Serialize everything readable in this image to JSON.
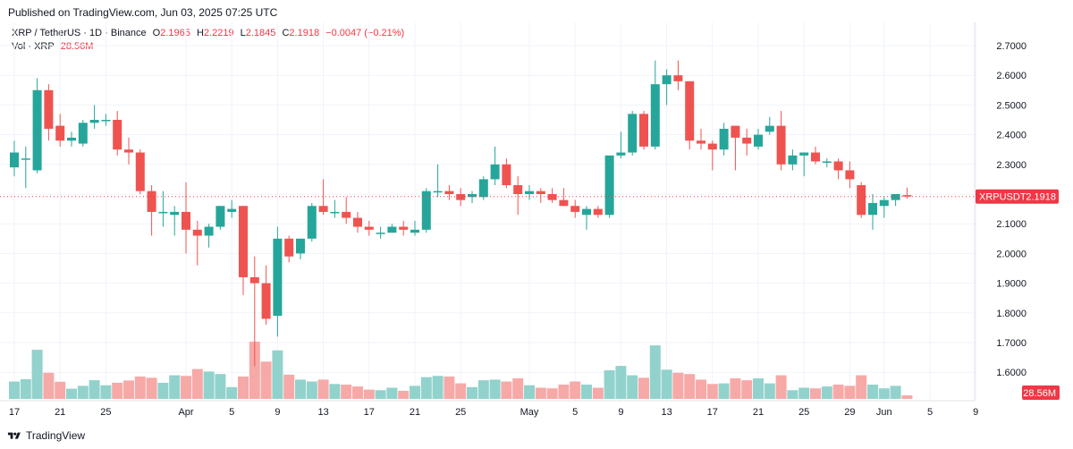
{
  "header": {
    "published": "Published on TradingView.com, Jun 03, 2025 07:25 UTC"
  },
  "legend": {
    "symbol": "XRP / TetherUS · 1D · Binance",
    "o_label": "O",
    "o_value": "2.1965",
    "h_label": "H",
    "h_value": "2.2219",
    "l_label": "L",
    "l_value": "2.1845",
    "c_label": "C",
    "c_value": "2.1918",
    "change": "−0.0047 (−0.21%)",
    "vol_label": "Vol · XRP",
    "vol_value": "28.56M"
  },
  "footer": {
    "brand": "TradingView",
    "logo_icon": "tradingview-logo-icon"
  },
  "colors": {
    "up": "#26a69a",
    "down": "#ef5350",
    "vol_up": "#92d2cc",
    "vol_down": "#f7a9a7",
    "grid": "#f0f3fa",
    "axis_text": "#131722",
    "price_tag": "#f23645"
  },
  "chart_data": {
    "type": "candlestick",
    "symbol": "XRP / TetherUS",
    "interval": "1D",
    "exchange": "Binance",
    "grid": true,
    "y_axis_position": "right",
    "ylim": [
      1.5,
      2.75
    ],
    "y_ticks": [
      "2.7000",
      "2.6000",
      "2.5000",
      "2.4000",
      "2.3000",
      "2.2000",
      "2.1000",
      "2.0000",
      "1.9000",
      "1.8000",
      "1.7000",
      "1.6000"
    ],
    "x_ticks": [
      {
        "label": "17",
        "day": 0
      },
      {
        "label": "21",
        "day": 4
      },
      {
        "label": "25",
        "day": 8
      },
      {
        "label": "Apr",
        "day": 15
      },
      {
        "label": "5",
        "day": 19
      },
      {
        "label": "9",
        "day": 23
      },
      {
        "label": "13",
        "day": 27
      },
      {
        "label": "17",
        "day": 31
      },
      {
        "label": "21",
        "day": 35
      },
      {
        "label": "25",
        "day": 39
      },
      {
        "label": "May",
        "day": 45
      },
      {
        "label": "5",
        "day": 49
      },
      {
        "label": "9",
        "day": 53
      },
      {
        "label": "13",
        "day": 57
      },
      {
        "label": "17",
        "day": 61
      },
      {
        "label": "21",
        "day": 65
      },
      {
        "label": "25",
        "day": 69
      },
      {
        "label": "29",
        "day": 73
      },
      {
        "label": "Jun",
        "day": 76
      },
      {
        "label": "5",
        "day": 80
      },
      {
        "label": "9",
        "day": 84
      }
    ],
    "last_price": {
      "symbol_label": "XRPUSDT",
      "value": "2.1918"
    },
    "last_volume": "28.56M",
    "volume_unit": "M XRP (estimated)",
    "candles": [
      {
        "o": 2.29,
        "h": 2.38,
        "l": 2.26,
        "c": 2.34,
        "v": 140
      },
      {
        "o": 2.32,
        "h": 2.36,
        "l": 2.22,
        "c": 2.32,
        "v": 158
      },
      {
        "o": 2.28,
        "h": 2.59,
        "l": 2.27,
        "c": 2.55,
        "v": 395
      },
      {
        "o": 2.55,
        "h": 2.57,
        "l": 2.38,
        "c": 2.42,
        "v": 210
      },
      {
        "o": 2.43,
        "h": 2.47,
        "l": 2.36,
        "c": 2.38,
        "v": 138
      },
      {
        "o": 2.38,
        "h": 2.41,
        "l": 2.36,
        "c": 2.39,
        "v": 82
      },
      {
        "o": 2.37,
        "h": 2.45,
        "l": 2.36,
        "c": 2.44,
        "v": 105
      },
      {
        "o": 2.44,
        "h": 2.5,
        "l": 2.42,
        "c": 2.45,
        "v": 150
      },
      {
        "o": 2.45,
        "h": 2.47,
        "l": 2.43,
        "c": 2.45,
        "v": 110
      },
      {
        "o": 2.45,
        "h": 2.48,
        "l": 2.33,
        "c": 2.35,
        "v": 130
      },
      {
        "o": 2.35,
        "h": 2.39,
        "l": 2.3,
        "c": 2.34,
        "v": 148
      },
      {
        "o": 2.34,
        "h": 2.35,
        "l": 2.2,
        "c": 2.21,
        "v": 180
      },
      {
        "o": 2.21,
        "h": 2.23,
        "l": 2.06,
        "c": 2.14,
        "v": 170
      },
      {
        "o": 2.14,
        "h": 2.21,
        "l": 2.09,
        "c": 2.14,
        "v": 130
      },
      {
        "o": 2.13,
        "h": 2.16,
        "l": 2.06,
        "c": 2.14,
        "v": 190
      },
      {
        "o": 2.14,
        "h": 2.24,
        "l": 2.0,
        "c": 2.08,
        "v": 185
      },
      {
        "o": 2.08,
        "h": 2.11,
        "l": 1.96,
        "c": 2.06,
        "v": 240
      },
      {
        "o": 2.06,
        "h": 2.1,
        "l": 2.02,
        "c": 2.09,
        "v": 220
      },
      {
        "o": 2.09,
        "h": 2.16,
        "l": 2.08,
        "c": 2.16,
        "v": 200
      },
      {
        "o": 2.14,
        "h": 2.18,
        "l": 2.12,
        "c": 2.15,
        "v": 95
      },
      {
        "o": 2.16,
        "h": 2.16,
        "l": 1.86,
        "c": 1.92,
        "v": 180
      },
      {
        "o": 1.92,
        "h": 1.99,
        "l": 1.62,
        "c": 1.9,
        "v": 460
      },
      {
        "o": 1.9,
        "h": 1.96,
        "l": 1.76,
        "c": 1.78,
        "v": 300
      },
      {
        "o": 1.79,
        "h": 2.09,
        "l": 1.72,
        "c": 2.05,
        "v": 390
      },
      {
        "o": 2.05,
        "h": 2.06,
        "l": 1.97,
        "c": 1.99,
        "v": 195
      },
      {
        "o": 2.0,
        "h": 2.05,
        "l": 1.98,
        "c": 2.05,
        "v": 155
      },
      {
        "o": 2.05,
        "h": 2.17,
        "l": 2.04,
        "c": 2.16,
        "v": 140
      },
      {
        "o": 2.16,
        "h": 2.25,
        "l": 2.13,
        "c": 2.14,
        "v": 155
      },
      {
        "o": 2.14,
        "h": 2.18,
        "l": 2.12,
        "c": 2.14,
        "v": 120
      },
      {
        "o": 2.14,
        "h": 2.19,
        "l": 2.1,
        "c": 2.12,
        "v": 115
      },
      {
        "o": 2.12,
        "h": 2.14,
        "l": 2.07,
        "c": 2.09,
        "v": 100
      },
      {
        "o": 2.09,
        "h": 2.11,
        "l": 2.06,
        "c": 2.08,
        "v": 75
      },
      {
        "o": 2.07,
        "h": 2.09,
        "l": 2.05,
        "c": 2.07,
        "v": 70
      },
      {
        "o": 2.07,
        "h": 2.1,
        "l": 2.07,
        "c": 2.09,
        "v": 90
      },
      {
        "o": 2.09,
        "h": 2.11,
        "l": 2.06,
        "c": 2.08,
        "v": 65
      },
      {
        "o": 2.07,
        "h": 2.11,
        "l": 2.06,
        "c": 2.08,
        "v": 105
      },
      {
        "o": 2.08,
        "h": 2.22,
        "l": 2.07,
        "c": 2.21,
        "v": 175
      },
      {
        "o": 2.21,
        "h": 2.3,
        "l": 2.19,
        "c": 2.21,
        "v": 185
      },
      {
        "o": 2.21,
        "h": 2.23,
        "l": 2.18,
        "c": 2.2,
        "v": 180
      },
      {
        "o": 2.2,
        "h": 2.22,
        "l": 2.16,
        "c": 2.18,
        "v": 125
      },
      {
        "o": 2.19,
        "h": 2.21,
        "l": 2.17,
        "c": 2.2,
        "v": 95
      },
      {
        "o": 2.19,
        "h": 2.26,
        "l": 2.18,
        "c": 2.25,
        "v": 150
      },
      {
        "o": 2.25,
        "h": 2.36,
        "l": 2.23,
        "c": 2.3,
        "v": 155
      },
      {
        "o": 2.3,
        "h": 2.32,
        "l": 2.22,
        "c": 2.23,
        "v": 140
      },
      {
        "o": 2.23,
        "h": 2.26,
        "l": 2.13,
        "c": 2.2,
        "v": 165
      },
      {
        "o": 2.2,
        "h": 2.23,
        "l": 2.18,
        "c": 2.21,
        "v": 110
      },
      {
        "o": 2.21,
        "h": 2.22,
        "l": 2.17,
        "c": 2.2,
        "v": 90
      },
      {
        "o": 2.2,
        "h": 2.22,
        "l": 2.17,
        "c": 2.18,
        "v": 85
      },
      {
        "o": 2.18,
        "h": 2.22,
        "l": 2.16,
        "c": 2.16,
        "v": 115
      },
      {
        "o": 2.16,
        "h": 2.18,
        "l": 2.12,
        "c": 2.14,
        "v": 140
      },
      {
        "o": 2.13,
        "h": 2.16,
        "l": 2.08,
        "c": 2.15,
        "v": 115
      },
      {
        "o": 2.15,
        "h": 2.16,
        "l": 2.12,
        "c": 2.13,
        "v": 90
      },
      {
        "o": 2.13,
        "h": 2.33,
        "l": 2.12,
        "c": 2.33,
        "v": 230
      },
      {
        "o": 2.33,
        "h": 2.41,
        "l": 2.32,
        "c": 2.34,
        "v": 265
      },
      {
        "o": 2.34,
        "h": 2.48,
        "l": 2.33,
        "c": 2.47,
        "v": 190
      },
      {
        "o": 2.47,
        "h": 2.48,
        "l": 2.35,
        "c": 2.36,
        "v": 170
      },
      {
        "o": 2.36,
        "h": 2.65,
        "l": 2.35,
        "c": 2.57,
        "v": 430
      },
      {
        "o": 2.57,
        "h": 2.62,
        "l": 2.5,
        "c": 2.6,
        "v": 235
      },
      {
        "o": 2.6,
        "h": 2.65,
        "l": 2.55,
        "c": 2.58,
        "v": 210
      },
      {
        "o": 2.58,
        "h": 2.58,
        "l": 2.35,
        "c": 2.38,
        "v": 200
      },
      {
        "o": 2.38,
        "h": 2.42,
        "l": 2.35,
        "c": 2.37,
        "v": 155
      },
      {
        "o": 2.37,
        "h": 2.38,
        "l": 2.28,
        "c": 2.35,
        "v": 120
      },
      {
        "o": 2.35,
        "h": 2.44,
        "l": 2.33,
        "c": 2.42,
        "v": 125
      },
      {
        "o": 2.43,
        "h": 2.43,
        "l": 2.28,
        "c": 2.39,
        "v": 165
      },
      {
        "o": 2.39,
        "h": 2.42,
        "l": 2.33,
        "c": 2.37,
        "v": 150
      },
      {
        "o": 2.36,
        "h": 2.42,
        "l": 2.35,
        "c": 2.4,
        "v": 165
      },
      {
        "o": 2.41,
        "h": 2.46,
        "l": 2.4,
        "c": 2.43,
        "v": 125
      },
      {
        "o": 2.43,
        "h": 2.48,
        "l": 2.28,
        "c": 2.3,
        "v": 190
      },
      {
        "o": 2.3,
        "h": 2.35,
        "l": 2.28,
        "c": 2.33,
        "v": 70
      },
      {
        "o": 2.33,
        "h": 2.34,
        "l": 2.26,
        "c": 2.34,
        "v": 90
      },
      {
        "o": 2.34,
        "h": 2.36,
        "l": 2.3,
        "c": 2.31,
        "v": 85
      },
      {
        "o": 2.31,
        "h": 2.32,
        "l": 2.29,
        "c": 2.31,
        "v": 100
      },
      {
        "o": 2.31,
        "h": 2.32,
        "l": 2.25,
        "c": 2.28,
        "v": 115
      },
      {
        "o": 2.28,
        "h": 2.31,
        "l": 2.22,
        "c": 2.25,
        "v": 105
      },
      {
        "o": 2.23,
        "h": 2.24,
        "l": 2.12,
        "c": 2.13,
        "v": 190
      },
      {
        "o": 2.13,
        "h": 2.2,
        "l": 2.08,
        "c": 2.17,
        "v": 115
      },
      {
        "o": 2.16,
        "h": 2.19,
        "l": 2.12,
        "c": 2.18,
        "v": 85
      },
      {
        "o": 2.18,
        "h": 2.2,
        "l": 2.16,
        "c": 2.2,
        "v": 105
      },
      {
        "o": 2.1965,
        "h": 2.2219,
        "l": 2.1845,
        "c": 2.1918,
        "v": 28.56
      }
    ]
  }
}
